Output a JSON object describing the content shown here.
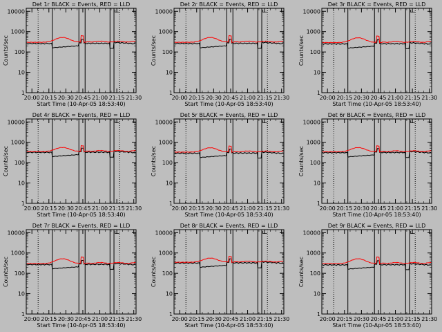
{
  "chart_data": [
    {
      "type": "line",
      "title": "Det 1r BLACK = Events, RED = LLD",
      "xlabel": "Start Time (10-Apr-05 18:53:40)",
      "ylabel": "Counts/sec",
      "ylog": true,
      "ylim": [
        1,
        14000
      ],
      "xlim": [
        "19:55",
        "21:32"
      ],
      "xticks": [
        "20:00",
        "20:15",
        "20:30",
        "20:45",
        "21:00",
        "21:15",
        "21:30"
      ],
      "yticks": [
        "1",
        "10",
        "100",
        "1000",
        "10000"
      ],
      "events_level": 260,
      "lld_level": 300,
      "lld_peak": 520
    },
    {
      "type": "line",
      "title": "Det 2r BLACK = Events, RED = LLD",
      "xlabel": "Start Time (10-Apr-05 18:53:40)",
      "ylabel": "Counts/sec",
      "ylog": true,
      "ylim": [
        1,
        14000
      ],
      "xlim": [
        "19:55",
        "21:32"
      ],
      "xticks": [
        "20:00",
        "20:15",
        "20:30",
        "20:45",
        "21:00",
        "21:15",
        "21:30"
      ],
      "yticks": [
        "1",
        "10",
        "100",
        "1000",
        "10000"
      ],
      "events_level": 260,
      "lld_level": 300,
      "lld_peak": 520
    },
    {
      "type": "line",
      "title": "Det 3r BLACK = Events, RED = LLD",
      "xlabel": "Start Time (10-Apr-05 18:53:40)",
      "ylabel": "Counts/sec",
      "ylog": true,
      "ylim": [
        1,
        14000
      ],
      "xlim": [
        "19:55",
        "21:32"
      ],
      "xticks": [
        "20:00",
        "20:15",
        "20:30",
        "20:45",
        "21:00",
        "21:15",
        "21:30"
      ],
      "yticks": [
        "1",
        "10",
        "100",
        "1000",
        "10000"
      ],
      "events_level": 250,
      "lld_level": 290,
      "lld_peak": 500
    },
    {
      "type": "line",
      "title": "Det 4r BLACK = Events, RED = LLD",
      "xlabel": "Start Time (10-Apr-05 18:53:40)",
      "ylabel": "Counts/sec",
      "ylog": true,
      "ylim": [
        1,
        14000
      ],
      "xlim": [
        "19:55",
        "21:32"
      ],
      "xticks": [
        "20:00",
        "20:15",
        "20:30",
        "20:45",
        "21:00",
        "21:15",
        "21:30"
      ],
      "yticks": [
        "1",
        "10",
        "100",
        "1000",
        "10000"
      ],
      "events_level": 320,
      "lld_level": 350,
      "lld_peak": 560
    },
    {
      "type": "line",
      "title": "Det 5r BLACK = Events, RED = LLD",
      "xlabel": "Start Time (10-Apr-05 18:53:40)",
      "ylabel": "Counts/sec",
      "ylog": true,
      "ylim": [
        1,
        14000
      ],
      "xlim": [
        "19:55",
        "21:32"
      ],
      "xticks": [
        "20:00",
        "20:15",
        "20:30",
        "20:45",
        "21:00",
        "21:15",
        "21:30"
      ],
      "yticks": [
        "1",
        "10",
        "100",
        "1000",
        "10000"
      ],
      "events_level": 290,
      "lld_level": 330,
      "lld_peak": 540
    },
    {
      "type": "line",
      "title": "Det 6r BLACK = Events, RED = LLD",
      "xlabel": "Start Time (10-Apr-05 18:53:40)",
      "ylabel": "Counts/sec",
      "ylog": true,
      "ylim": [
        1,
        14000
      ],
      "xlim": [
        "19:55",
        "21:32"
      ],
      "xticks": [
        "20:00",
        "20:15",
        "20:30",
        "20:45",
        "21:00",
        "21:15",
        "21:30"
      ],
      "yticks": [
        "1",
        "10",
        "100",
        "1000",
        "10000"
      ],
      "events_level": 310,
      "lld_level": 340,
      "lld_peak": 550
    },
    {
      "type": "line",
      "title": "Det 7r BLACK = Events, RED = LLD",
      "xlabel": "Start Time (10-Apr-05 18:53:40)",
      "ylabel": "Counts/sec",
      "ylog": true,
      "ylim": [
        1,
        14000
      ],
      "xlim": [
        "19:55",
        "21:32"
      ],
      "xticks": [
        "20:00",
        "20:15",
        "20:30",
        "20:45",
        "21:00",
        "21:15",
        "21:30"
      ],
      "yticks": [
        "1",
        "10",
        "100",
        "1000",
        "10000"
      ],
      "events_level": 270,
      "lld_level": 300,
      "lld_peak": 520
    },
    {
      "type": "line",
      "title": "Det 8r BLACK = Events, RED = LLD",
      "xlabel": "Start Time (10-Apr-05 18:53:40)",
      "ylabel": "Counts/sec",
      "ylog": true,
      "ylim": [
        1,
        14000
      ],
      "xlim": [
        "19:55",
        "21:32"
      ],
      "xticks": [
        "20:00",
        "20:15",
        "20:30",
        "20:45",
        "21:00",
        "21:15",
        "21:30"
      ],
      "yticks": [
        "1",
        "10",
        "100",
        "1000",
        "10000"
      ],
      "events_level": 320,
      "lld_level": 350,
      "lld_peak": 560
    },
    {
      "type": "line",
      "title": "Det 9r BLACK = Events, RED = LLD",
      "xlabel": "Start Time (10-Apr-05 18:53:40)",
      "ylabel": "Counts/sec",
      "ylog": true,
      "ylim": [
        1,
        14000
      ],
      "xlim": [
        "19:55",
        "21:32"
      ],
      "xticks": [
        "20:00",
        "20:15",
        "20:30",
        "20:45",
        "21:00",
        "21:15",
        "21:30"
      ],
      "yticks": [
        "1",
        "10",
        "100",
        "1000",
        "10000"
      ],
      "events_level": 260,
      "lld_level": 300,
      "lld_peak": 520
    }
  ],
  "colors": {
    "background": "#bebebe",
    "events": "#000000",
    "lld": "#ff0000",
    "axes": "#000000"
  }
}
